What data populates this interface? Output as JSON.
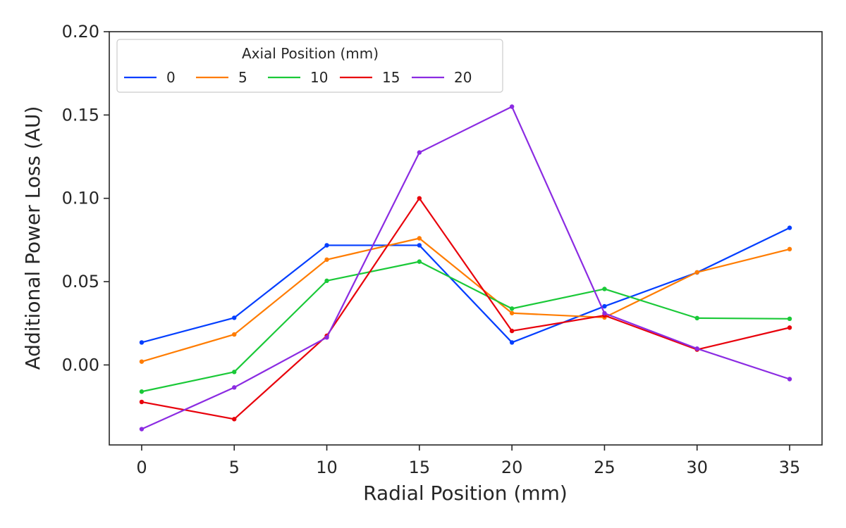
{
  "chart_data": {
    "type": "line",
    "xlabel": "Radial Position (mm)",
    "ylabel": "Additional Power Loss (AU)",
    "x": [
      0,
      5,
      10,
      15,
      20,
      25,
      30,
      35
    ],
    "xlim": [
      -1.75,
      36.75
    ],
    "ylim": [
      -0.048,
      0.2
    ],
    "xticks": [
      0,
      5,
      10,
      15,
      20,
      25,
      30,
      35
    ],
    "yticks": [
      0.0,
      0.05,
      0.1,
      0.15,
      0.2
    ],
    "ytick_labels": [
      "0.00",
      "0.05",
      "0.10",
      "0.15",
      "0.20"
    ],
    "grid": false,
    "legend": {
      "title": "Axial Position (mm)",
      "placement": "top-left"
    },
    "series": [
      {
        "name": "0",
        "color": "#023eff",
        "values": [
          0.0135,
          0.0283,
          0.0718,
          0.0718,
          0.0135,
          0.0352,
          0.0555,
          0.0823
        ]
      },
      {
        "name": "5",
        "color": "#ff7c00",
        "values": [
          0.002,
          0.0183,
          0.0632,
          0.076,
          0.0311,
          0.0285,
          0.0556,
          0.0695
        ]
      },
      {
        "name": "10",
        "color": "#1ac938",
        "values": [
          -0.016,
          -0.0042,
          0.0505,
          0.062,
          0.0338,
          0.0456,
          0.0281,
          0.0277
        ]
      },
      {
        "name": "15",
        "color": "#e8000b",
        "values": [
          -0.0222,
          -0.0325,
          0.0175,
          0.1,
          0.0204,
          0.0297,
          0.0092,
          0.0224
        ]
      },
      {
        "name": "20",
        "color": "#8b2be2",
        "values": [
          -0.0385,
          -0.0135,
          0.0165,
          0.1275,
          0.155,
          0.031,
          0.0098,
          -0.0085
        ]
      }
    ]
  }
}
